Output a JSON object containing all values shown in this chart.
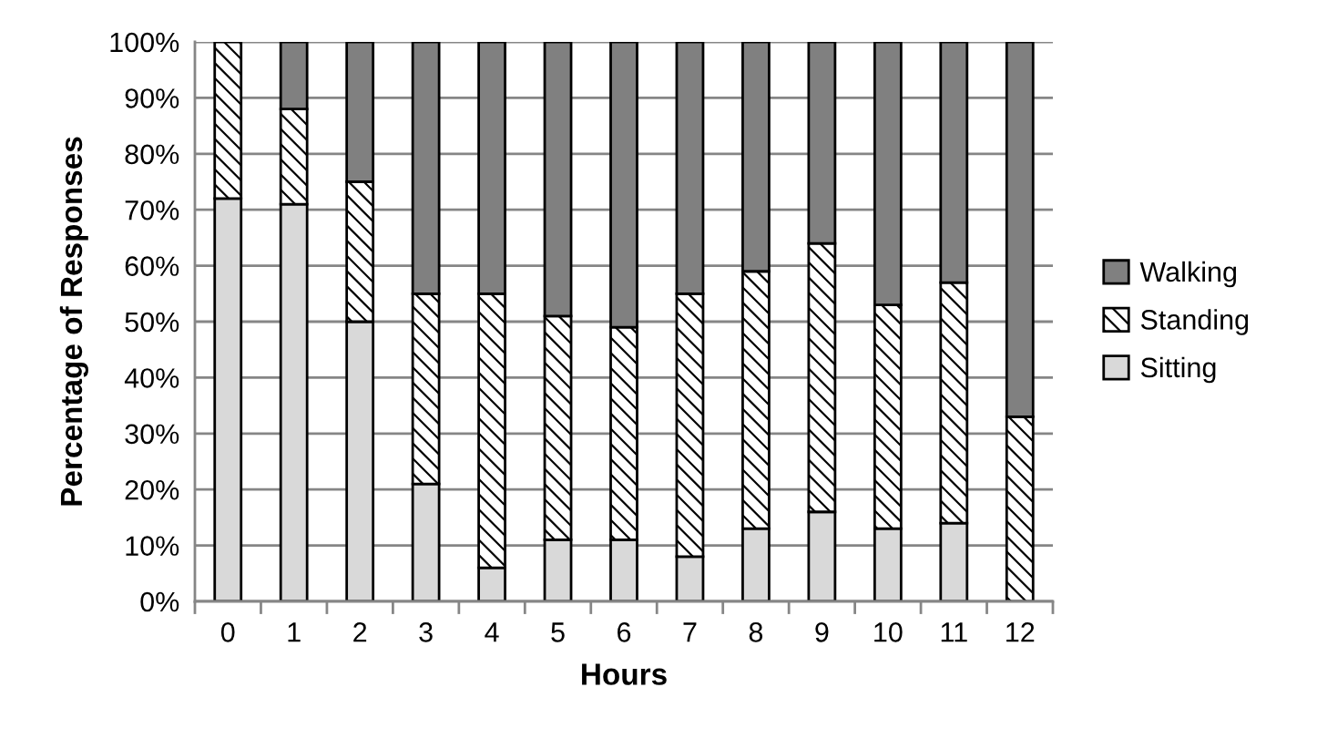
{
  "chart_data": {
    "type": "bar",
    "stacked": true,
    "categories": [
      "0",
      "1",
      "2",
      "3",
      "4",
      "5",
      "6",
      "7",
      "8",
      "9",
      "10",
      "11",
      "12"
    ],
    "series": [
      {
        "name": "Sitting",
        "color": "#d9d9d9",
        "values": [
          72,
          71,
          50,
          21,
          6,
          11,
          11,
          8,
          13,
          16,
          13,
          14,
          0
        ]
      },
      {
        "name": "Standing",
        "color": "#000000",
        "values": [
          28,
          17,
          25,
          34,
          49,
          40,
          38,
          47,
          46,
          48,
          40,
          43,
          33
        ]
      },
      {
        "name": "Walking",
        "color": "#808080",
        "values": [
          0,
          12,
          25,
          45,
          45,
          49,
          51,
          45,
          41,
          36,
          47,
          43,
          67
        ]
      }
    ],
    "xlabel": "Hours",
    "ylabel": "Percentage of Responses",
    "ylim": [
      0,
      100
    ],
    "yticks": [
      {
        "value": 0,
        "label": "0%"
      },
      {
        "value": 10,
        "label": "10%"
      },
      {
        "value": 20,
        "label": "20%"
      },
      {
        "value": 30,
        "label": "30%"
      },
      {
        "value": 40,
        "label": "40%"
      },
      {
        "value": 50,
        "label": "50%"
      },
      {
        "value": 60,
        "label": "60%"
      },
      {
        "value": 70,
        "label": "70%"
      },
      {
        "value": 80,
        "label": "80%"
      },
      {
        "value": 90,
        "label": "90%"
      },
      {
        "value": 100,
        "label": "100%"
      }
    ],
    "grid": "y",
    "legend": "right"
  }
}
